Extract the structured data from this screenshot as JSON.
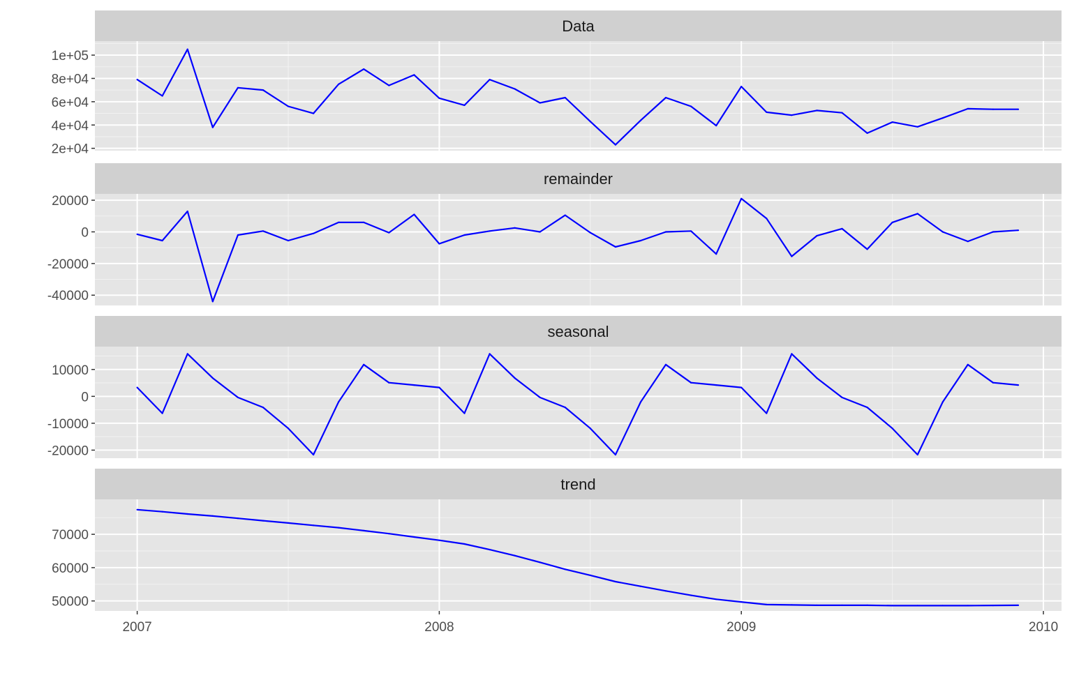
{
  "chart_data": {
    "type": "line",
    "line_color": "#0000ff",
    "panel_background": "#e5e5e5",
    "strip_background": "#d0d0d0",
    "grid": true,
    "x_axis": {
      "ticks": [
        2007,
        2008,
        2009,
        2010
      ],
      "tick_labels": [
        "2007",
        "2008",
        "2009",
        "2010"
      ],
      "range": [
        2006.86,
        2010.06
      ]
    },
    "panels": [
      {
        "strip": "Data",
        "ylim": [
          18000,
          112000
        ],
        "y_ticks": [
          20000,
          40000,
          60000,
          80000,
          100000
        ],
        "y_tick_labels": [
          "2e+04",
          "4e+04",
          "6e+04",
          "8e+04",
          "1e+05"
        ],
        "x": [
          2007.0,
          2007.0833,
          2007.1667,
          2007.25,
          2007.3333,
          2007.4167,
          2007.5,
          2007.5833,
          2007.6667,
          2007.75,
          2007.8333,
          2007.9167,
          2008.0,
          2008.0833,
          2008.1667,
          2008.25,
          2008.3333,
          2008.4167,
          2008.5,
          2008.5833,
          2008.6667,
          2008.75,
          2008.8333,
          2008.9167,
          2009.0,
          2009.0833,
          2009.1667,
          2009.25,
          2009.3333,
          2009.4167,
          2009.5,
          2009.5833,
          2009.6667,
          2009.75,
          2009.8333,
          2009.9167
        ],
        "values": [
          79000,
          65000,
          105000,
          38000,
          72000,
          70000,
          56000,
          50000,
          75000,
          88000,
          74000,
          83000,
          63000,
          57000,
          79000,
          71000,
          59000,
          63500,
          43000,
          23000,
          44000,
          63500,
          56000,
          39500,
          73000,
          51000,
          48500,
          52500,
          50500,
          33000,
          42500,
          38500,
          46000,
          54000,
          53500,
          53500
        ]
      },
      {
        "strip": "remainder",
        "ylim": [
          -46500,
          24000
        ],
        "y_ticks": [
          -40000,
          -20000,
          0,
          20000
        ],
        "y_tick_labels": [
          "-40000",
          "-20000",
          "0",
          "20000"
        ],
        "x": [
          2007.0,
          2007.0833,
          2007.1667,
          2007.25,
          2007.3333,
          2007.4167,
          2007.5,
          2007.5833,
          2007.6667,
          2007.75,
          2007.8333,
          2007.9167,
          2008.0,
          2008.0833,
          2008.1667,
          2008.25,
          2008.3333,
          2008.4167,
          2008.5,
          2008.5833,
          2008.6667,
          2008.75,
          2008.8333,
          2008.9167,
          2009.0,
          2009.0833,
          2009.1667,
          2009.25,
          2009.3333,
          2009.4167,
          2009.5,
          2009.5833,
          2009.6667,
          2009.75,
          2009.8333,
          2009.9167
        ],
        "values": [
          -1500,
          -5500,
          13000,
          -44000,
          -2000,
          500,
          -5500,
          -1000,
          6000,
          6000,
          -500,
          11000,
          -7500,
          -2000,
          500,
          2500,
          0,
          10500,
          -500,
          -9500,
          -5500,
          0,
          500,
          -14000,
          21000,
          8500,
          -15500,
          -2500,
          2000,
          -11000,
          6000,
          11500,
          0,
          -6000,
          0,
          1000
        ]
      },
      {
        "strip": "seasonal",
        "ylim": [
          -23000,
          18500
        ],
        "y_ticks": [
          -20000,
          -10000,
          0,
          10000
        ],
        "y_tick_labels": [
          "-20000",
          "-10000",
          "0",
          "10000"
        ],
        "x": [
          2007.0,
          2007.0833,
          2007.1667,
          2007.25,
          2007.3333,
          2007.4167,
          2007.5,
          2007.5833,
          2007.6667,
          2007.75,
          2007.8333,
          2007.9167,
          2008.0,
          2008.0833,
          2008.1667,
          2008.25,
          2008.3333,
          2008.4167,
          2008.5,
          2008.5833,
          2008.6667,
          2008.75,
          2008.8333,
          2008.9167,
          2009.0,
          2009.0833,
          2009.1667,
          2009.25,
          2009.3333,
          2009.4167,
          2009.5,
          2009.5833,
          2009.6667,
          2009.75,
          2009.8333,
          2009.9167
        ],
        "values": [
          3300,
          -6300,
          15800,
          6800,
          -400,
          -4100,
          -11900,
          -21700,
          -2100,
          11800,
          5100,
          4200,
          3300,
          -6300,
          15800,
          6800,
          -400,
          -4100,
          -11900,
          -21700,
          -2100,
          11800,
          5100,
          4200,
          3300,
          -6300,
          15800,
          6800,
          -400,
          -4100,
          -11900,
          -21700,
          -2100,
          11800,
          5100,
          4200
        ]
      },
      {
        "strip": "trend",
        "ylim": [
          47000,
          80500
        ],
        "y_ticks": [
          50000,
          60000,
          70000
        ],
        "y_tick_labels": [
          "50000",
          "60000",
          "70000"
        ],
        "x": [
          2007.0,
          2007.0833,
          2007.1667,
          2007.25,
          2007.3333,
          2007.4167,
          2007.5,
          2007.5833,
          2007.6667,
          2007.75,
          2007.8333,
          2007.9167,
          2008.0,
          2008.0833,
          2008.1667,
          2008.25,
          2008.3333,
          2008.4167,
          2008.5,
          2008.5833,
          2008.6667,
          2008.75,
          2008.8333,
          2008.9167,
          2009.0,
          2009.0833,
          2009.1667,
          2009.25,
          2009.3333,
          2009.4167,
          2009.5,
          2009.5833,
          2009.6667,
          2009.75,
          2009.8333,
          2009.9167
        ],
        "values": [
          77400,
          76800,
          76100,
          75500,
          74800,
          74100,
          73400,
          72700,
          72000,
          71100,
          70200,
          69200,
          68200,
          67100,
          65400,
          63600,
          61600,
          59500,
          57700,
          55800,
          54400,
          53000,
          51700,
          50500,
          49700,
          48900,
          48800,
          48700,
          48700,
          48700,
          48600,
          48600,
          48600,
          48600,
          48650,
          48700
        ]
      }
    ]
  }
}
